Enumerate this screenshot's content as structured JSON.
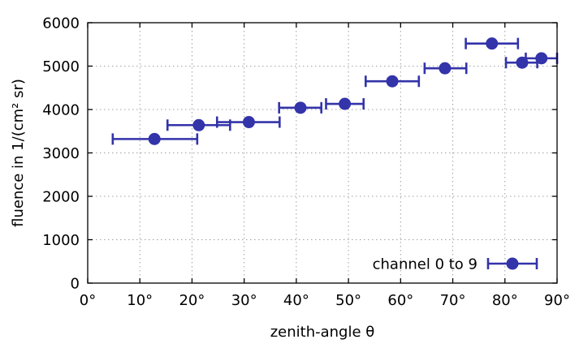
{
  "chart_data": {
    "type": "scatter",
    "xlabel": "zenith-angle θ",
    "ylabel": "fluence in 1/(cm² sr)",
    "xlim": [
      0,
      90
    ],
    "ylim": [
      0,
      6000
    ],
    "x_ticks": [
      {
        "value": 0,
        "label": "0°"
      },
      {
        "value": 10,
        "label": "10°"
      },
      {
        "value": 20,
        "label": "20°"
      },
      {
        "value": 30,
        "label": "30°"
      },
      {
        "value": 40,
        "label": "40°"
      },
      {
        "value": 50,
        "label": "50°"
      },
      {
        "value": 60,
        "label": "60°"
      },
      {
        "value": 70,
        "label": "70°"
      },
      {
        "value": 80,
        "label": "80°"
      },
      {
        "value": 90,
        "label": "90°"
      }
    ],
    "y_ticks": [
      {
        "value": 0,
        "label": "0"
      },
      {
        "value": 1000,
        "label": "1000"
      },
      {
        "value": 2000,
        "label": "2000"
      },
      {
        "value": 3000,
        "label": "3000"
      },
      {
        "value": 4000,
        "label": "4000"
      },
      {
        "value": 5000,
        "label": "5000"
      },
      {
        "value": 6000,
        "label": "6000"
      }
    ],
    "grid": true,
    "legend_position": "bottom-right",
    "series": [
      {
        "name": "channel 0 to 9",
        "color": "#3333aa",
        "marker": "circle",
        "points": [
          {
            "x": 12.8,
            "y": 3320,
            "xmin": 4.8,
            "xmax": 21.0
          },
          {
            "x": 21.3,
            "y": 3640,
            "xmin": 15.3,
            "xmax": 27.3
          },
          {
            "x": 30.9,
            "y": 3710,
            "xmin": 24.8,
            "xmax": 36.8
          },
          {
            "x": 40.8,
            "y": 4040,
            "xmin": 36.7,
            "xmax": 44.8
          },
          {
            "x": 49.3,
            "y": 4130,
            "xmin": 45.7,
            "xmax": 52.9
          },
          {
            "x": 58.4,
            "y": 4650,
            "xmin": 53.3,
            "xmax": 63.5
          },
          {
            "x": 68.5,
            "y": 4950,
            "xmin": 64.6,
            "xmax": 72.6
          },
          {
            "x": 77.5,
            "y": 5520,
            "xmin": 72.5,
            "xmax": 82.5
          },
          {
            "x": 83.3,
            "y": 5080,
            "xmin": 80.2,
            "xmax": 86.2
          },
          {
            "x": 87.0,
            "y": 5180,
            "xmin": 84.0,
            "xmax": 90.0
          }
        ]
      }
    ]
  }
}
